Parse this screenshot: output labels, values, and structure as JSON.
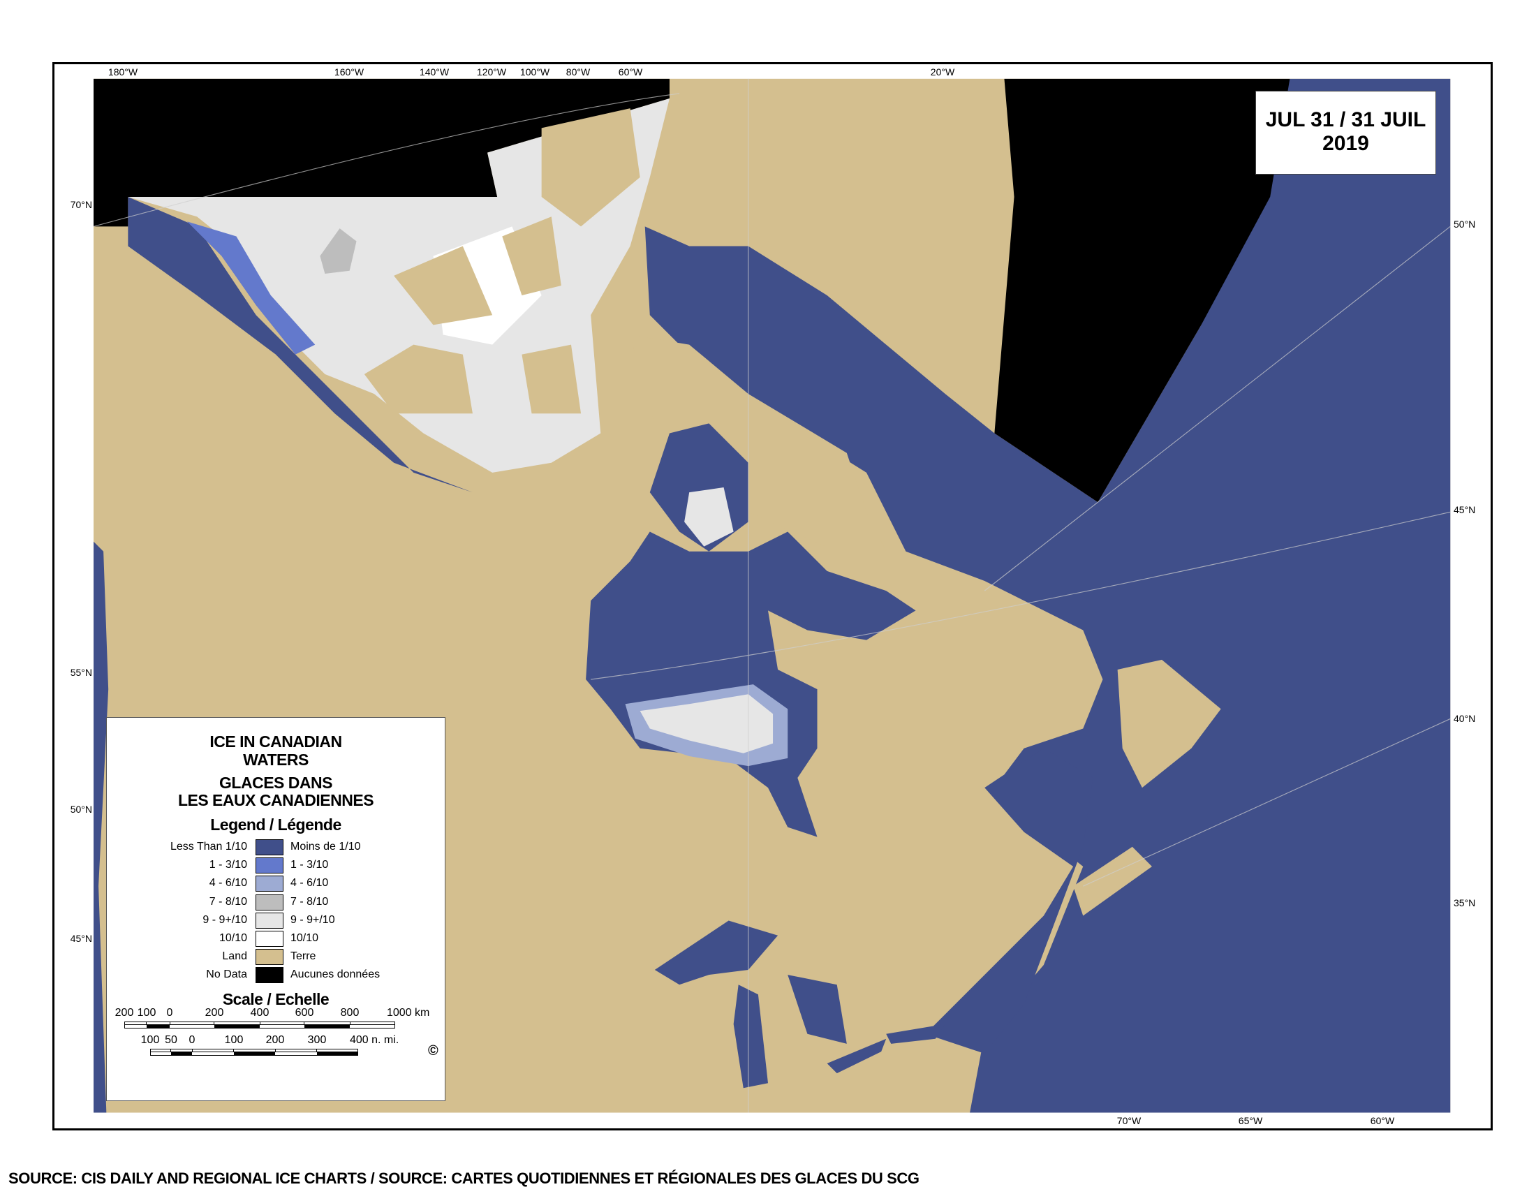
{
  "map": {
    "date_line1": "JUL 31 / 31 JUIL",
    "date_line2": "2019",
    "top_labels": [
      "180°W",
      "160°W",
      "140°W",
      "120°W",
      "100°W",
      "80°W",
      "60°W",
      "20°W"
    ],
    "left_labels": [
      "70°N",
      "55°N",
      "50°N",
      "45°N"
    ],
    "right_labels": [
      "50°N",
      "45°N",
      "40°N",
      "35°N"
    ],
    "bottom_labels": [
      "70°W",
      "65°W",
      "60°W"
    ],
    "colors": {
      "water": "#404f8a",
      "land": "#d4bf8f",
      "no_data": "#000000",
      "ice_9": "#e6e6e6",
      "ice_1_3": "#6379cc",
      "ice_4_6": "#9dabd3",
      "ice_7_8": "#bdbdbd",
      "ice_10": "#ffffff"
    }
  },
  "legend": {
    "title_en_1": "ICE IN CANADIAN",
    "title_en_2": "WATERS",
    "title_fr_1": "GLACES DANS",
    "title_fr_2": "LES EAUX CANADIENNES",
    "heading": "Legend / Légende",
    "items": [
      {
        "en": "Less Than 1/10",
        "fr": "Moins de 1/10",
        "color": "#404f8a"
      },
      {
        "en": "1 - 3/10",
        "fr": "1 - 3/10",
        "color": "#6379cc"
      },
      {
        "en": "4 - 6/10",
        "fr": "4 - 6/10",
        "color": "#9dabd3"
      },
      {
        "en": "7 - 8/10",
        "fr": "7 - 8/10",
        "color": "#bdbdbd"
      },
      {
        "en": "9 - 9+/10",
        "fr": "9 - 9+/10",
        "color": "#e6e6e6"
      },
      {
        "en": "10/10",
        "fr": "10/10",
        "color": "#ffffff"
      },
      {
        "en": "Land",
        "fr": "Terre",
        "color": "#d4bf8f"
      },
      {
        "en": "No Data",
        "fr": "Aucunes données",
        "color": "#000000"
      }
    ],
    "scale_heading": "Scale / Echelle",
    "km_labels": [
      "200",
      "100",
      "0",
      "200",
      "400",
      "600",
      "800",
      "1000 km"
    ],
    "nmi_labels": [
      "100",
      "50",
      "0",
      "100",
      "200",
      "300",
      "400 n. mi."
    ],
    "copyright": "©"
  },
  "source": "SOURCE: CIS DAILY AND REGIONAL ICE CHARTS / SOURCE: CARTES QUOTIDIENNES ET RÉGIONALES DES GLACES DU SCG"
}
